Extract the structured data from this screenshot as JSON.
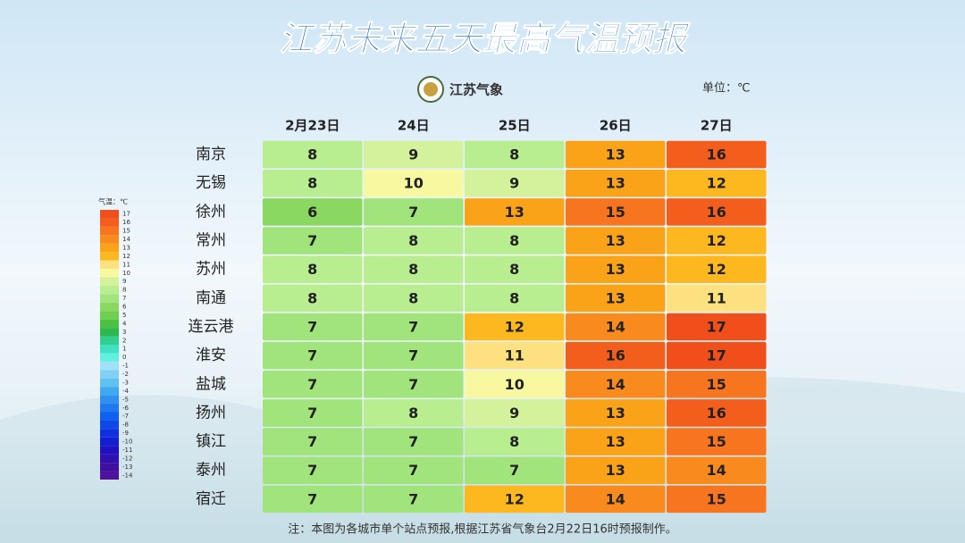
{
  "header": {
    "title": "江苏未来五天最高气温预报",
    "brand": "江苏气象",
    "unit": "单位：℃"
  },
  "table": {
    "columns": [
      "2月23日",
      "24日",
      "25日",
      "26日",
      "27日"
    ],
    "rows": [
      {
        "city": "南京",
        "values": [
          8,
          9,
          8,
          13,
          16
        ]
      },
      {
        "city": "无锡",
        "values": [
          8,
          10,
          9,
          13,
          12
        ]
      },
      {
        "city": "徐州",
        "values": [
          6,
          7,
          13,
          15,
          16
        ]
      },
      {
        "city": "常州",
        "values": [
          7,
          8,
          8,
          13,
          12
        ]
      },
      {
        "city": "苏州",
        "values": [
          8,
          8,
          8,
          13,
          12
        ]
      },
      {
        "city": "南通",
        "values": [
          8,
          8,
          8,
          13,
          11
        ]
      },
      {
        "city": "连云港",
        "values": [
          7,
          7,
          12,
          14,
          17
        ]
      },
      {
        "city": "淮安",
        "values": [
          7,
          7,
          11,
          16,
          17
        ]
      },
      {
        "city": "盐城",
        "values": [
          7,
          7,
          10,
          14,
          15
        ]
      },
      {
        "city": "扬州",
        "values": [
          7,
          8,
          9,
          13,
          16
        ]
      },
      {
        "city": "镇江",
        "values": [
          7,
          7,
          8,
          13,
          15
        ]
      },
      {
        "city": "泰州",
        "values": [
          7,
          7,
          7,
          13,
          14
        ]
      },
      {
        "city": "宿迁",
        "values": [
          7,
          7,
          12,
          14,
          15
        ]
      }
    ]
  },
  "legend": {
    "title": "气温：℃",
    "items": [
      {
        "label": 17,
        "color": "#f04e1a"
      },
      {
        "label": 16,
        "color": "#f45e1c"
      },
      {
        "label": 15,
        "color": "#f7751e"
      },
      {
        "label": 14,
        "color": "#f88a1e"
      },
      {
        "label": 13,
        "color": "#fba318"
      },
      {
        "label": 12,
        "color": "#fdb820"
      },
      {
        "label": 11,
        "color": "#fde080"
      },
      {
        "label": 10,
        "color": "#f8f8a0"
      },
      {
        "label": 9,
        "color": "#d4f29c"
      },
      {
        "label": 8,
        "color": "#b8ee90"
      },
      {
        "label": 7,
        "color": "#a2e47c"
      },
      {
        "label": 6,
        "color": "#8ad862"
      },
      {
        "label": 5,
        "color": "#6fd050"
      },
      {
        "label": 4,
        "color": "#4cc040"
      },
      {
        "label": 3,
        "color": "#30b850"
      },
      {
        "label": 2,
        "color": "#30d090"
      },
      {
        "label": 1,
        "color": "#40e0c0"
      },
      {
        "label": 0,
        "color": "#60f0e0"
      },
      {
        "label": -1,
        "color": "#a0e0f8"
      },
      {
        "label": -2,
        "color": "#80d0f5"
      },
      {
        "label": -3,
        "color": "#60c0f0"
      },
      {
        "label": -4,
        "color": "#40a8f0"
      },
      {
        "label": -5,
        "color": "#3090f0"
      },
      {
        "label": -6,
        "color": "#2078f0"
      },
      {
        "label": -7,
        "color": "#1060f0"
      },
      {
        "label": -8,
        "color": "#1048e8"
      },
      {
        "label": -9,
        "color": "#1030e0"
      },
      {
        "label": -10,
        "color": "#1020d0"
      },
      {
        "label": -11,
        "color": "#2010c0"
      },
      {
        "label": -12,
        "color": "#3010b0"
      },
      {
        "label": -13,
        "color": "#4010a0"
      },
      {
        "label": -14,
        "color": "#5010a0"
      }
    ]
  },
  "note": "注：本图为各城市单个站点预报,根据江苏省气象台2月22日16时预报制作。"
}
